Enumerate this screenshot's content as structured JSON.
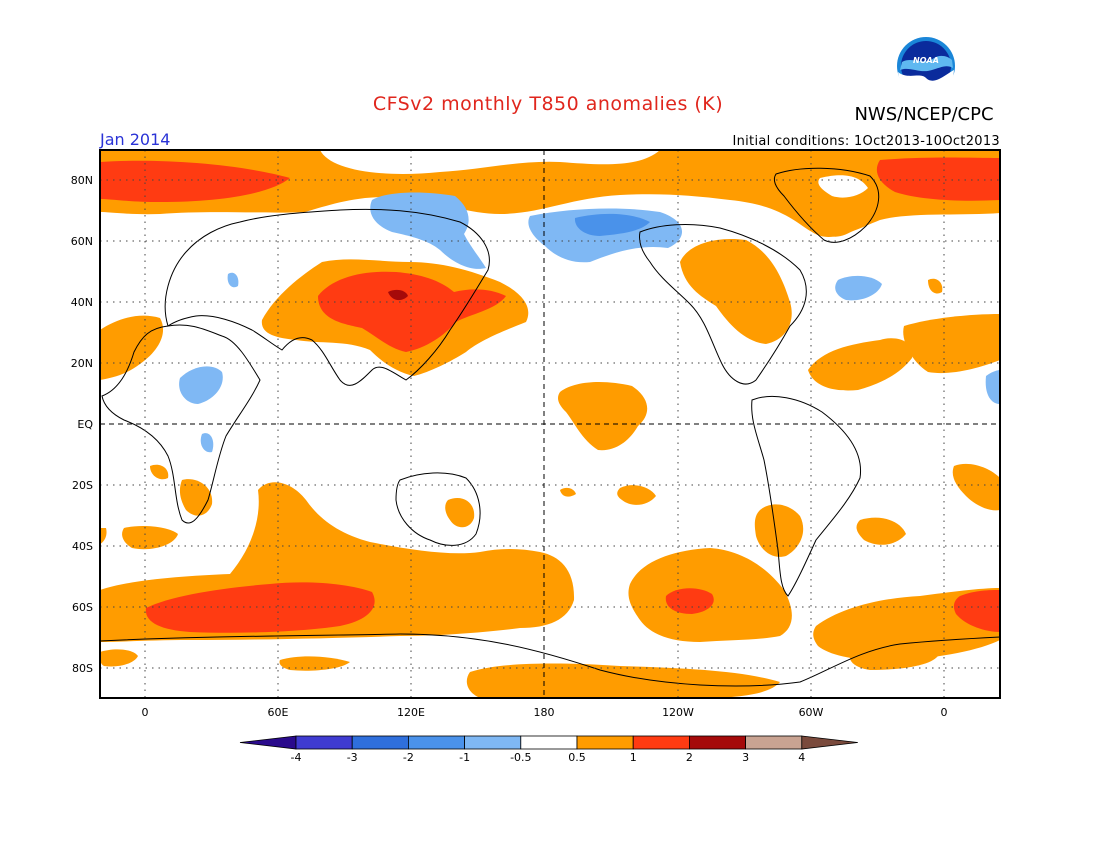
{
  "title": "CFSv2 monthly T850 anomalies (K)",
  "agency": "NWS/NCEP/CPC",
  "logo_text": "NOAA",
  "period": "Jan 2014",
  "initial_conditions": "Initial conditions: 1Oct2013-10Oct2013",
  "lat_labels": [
    "80N",
    "60N",
    "40N",
    "20N",
    "EQ",
    "20S",
    "40S",
    "60S",
    "80S"
  ],
  "lon_labels": [
    "0",
    "60E",
    "120E",
    "180",
    "120W",
    "60W",
    "0"
  ],
  "colorbar": {
    "ticks": [
      "-4",
      "-3",
      "-2",
      "-1",
      "-0.5",
      "0.5",
      "1",
      "2",
      "3",
      "4"
    ],
    "colors": [
      "#2a0a8c",
      "#3f3bd1",
      "#2f6fdc",
      "#4a92ea",
      "#7fb8f4",
      "#ffffff",
      "#ff9c00",
      "#ff3b12",
      "#a50a0a",
      "#c9a392",
      "#7a4a3c"
    ]
  }
}
